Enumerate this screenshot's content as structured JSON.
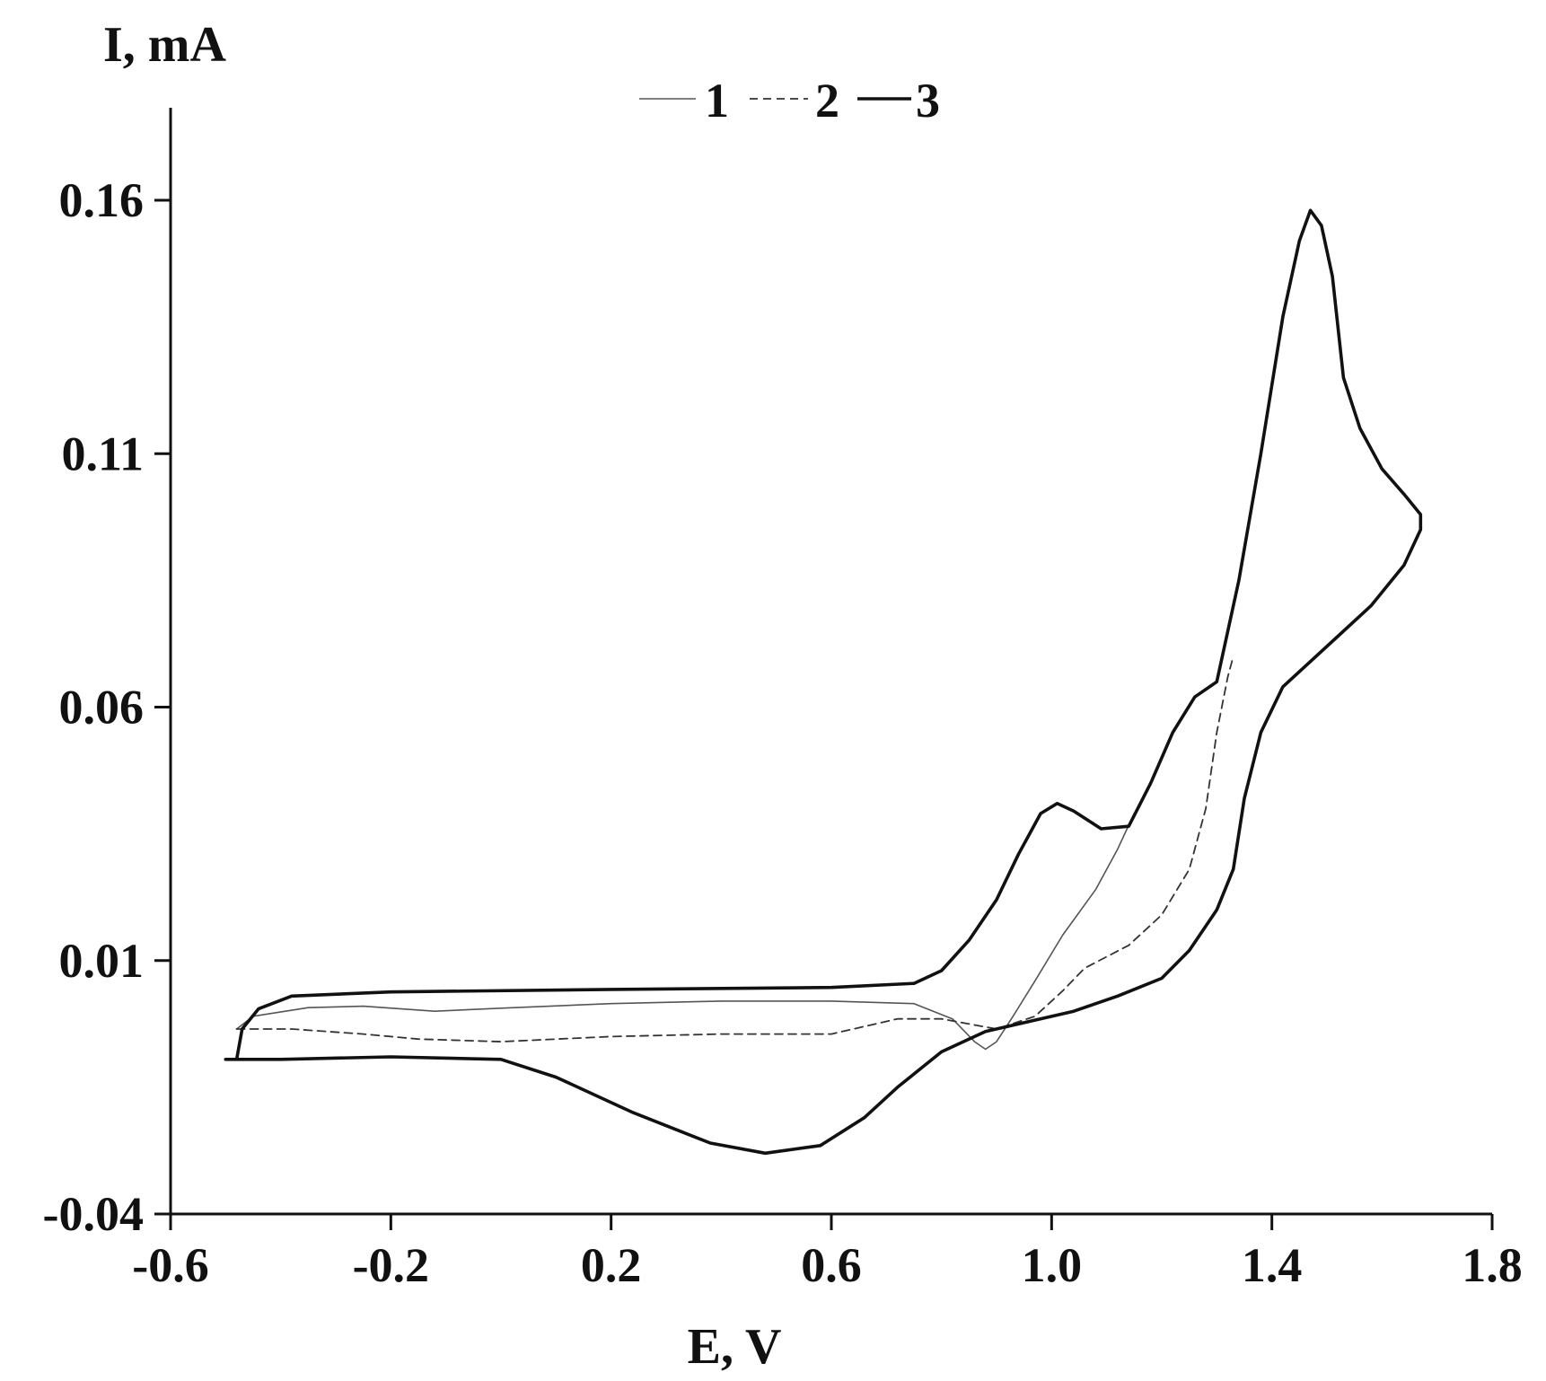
{
  "chart_data": {
    "type": "line",
    "title": "",
    "xlabel": "E, V",
    "ylabel": "I, mA",
    "xlim": [
      -0.6,
      1.8
    ],
    "ylim": [
      -0.04,
      0.18
    ],
    "x_ticks": [
      -0.6,
      -0.2,
      0.2,
      0.6,
      1.0,
      1.4,
      1.8
    ],
    "x_tick_labels": [
      "-0.6",
      "-0.2",
      "0.2",
      "0.6",
      "1.0",
      "1.4",
      "1.8"
    ],
    "y_ticks": [
      -0.04,
      0.01,
      0.06,
      0.11,
      0.16
    ],
    "y_tick_labels": [
      "-0.04",
      "0.01",
      "0.06",
      "0.11",
      "0.16"
    ],
    "grid": false,
    "legend_position": "top-center",
    "series": [
      {
        "name": "1",
        "style": "thin-solid",
        "color": "#555555",
        "points": [
          [
            -0.48,
            -0.0035
          ],
          [
            -0.45,
            -0.001
          ],
          [
            -0.35,
            0.0007
          ],
          [
            -0.25,
            0.001
          ],
          [
            -0.12,
            0.0
          ],
          [
            0.0,
            0.0006
          ],
          [
            0.2,
            0.0015
          ],
          [
            0.4,
            0.002
          ],
          [
            0.6,
            0.002
          ],
          [
            0.75,
            0.0015
          ],
          [
            0.82,
            -0.0015
          ],
          [
            0.86,
            -0.006
          ],
          [
            0.88,
            -0.0075
          ],
          [
            0.9,
            -0.006
          ],
          [
            0.93,
            -0.001
          ],
          [
            0.97,
            0.006
          ],
          [
            1.02,
            0.015
          ],
          [
            1.08,
            0.024
          ],
          [
            1.12,
            0.032
          ],
          [
            1.15,
            0.039
          ]
        ]
      },
      {
        "name": "2",
        "style": "dashed",
        "color": "#333333",
        "points": [
          [
            -0.48,
            -0.0035
          ],
          [
            -0.38,
            -0.0035
          ],
          [
            -0.25,
            -0.0045
          ],
          [
            -0.15,
            -0.0055
          ],
          [
            0.0,
            -0.006
          ],
          [
            0.2,
            -0.005
          ],
          [
            0.4,
            -0.0045
          ],
          [
            0.6,
            -0.0045
          ],
          [
            0.72,
            -0.0015
          ],
          [
            0.8,
            -0.0015
          ],
          [
            0.9,
            -0.0035
          ],
          [
            0.97,
            -0.001
          ],
          [
            1.02,
            0.004
          ],
          [
            1.06,
            0.0085
          ],
          [
            1.14,
            0.013
          ],
          [
            1.2,
            0.019
          ],
          [
            1.25,
            0.028
          ],
          [
            1.28,
            0.04
          ],
          [
            1.3,
            0.055
          ],
          [
            1.32,
            0.066
          ],
          [
            1.33,
            0.07
          ]
        ]
      },
      {
        "name": "3",
        "style": "thick-solid",
        "color": "#111111",
        "points": [
          [
            -0.48,
            -0.0095
          ],
          [
            -0.47,
            -0.0035
          ],
          [
            -0.44,
            0.0005
          ],
          [
            -0.38,
            0.003
          ],
          [
            -0.2,
            0.0038
          ],
          [
            0.2,
            0.0043
          ],
          [
            0.6,
            0.0047
          ],
          [
            0.75,
            0.0055
          ],
          [
            0.8,
            0.008
          ],
          [
            0.85,
            0.014
          ],
          [
            0.9,
            0.022
          ],
          [
            0.94,
            0.031
          ],
          [
            0.98,
            0.039
          ],
          [
            1.01,
            0.041
          ],
          [
            1.04,
            0.0395
          ],
          [
            1.09,
            0.036
          ],
          [
            1.14,
            0.0365
          ],
          [
            1.18,
            0.045
          ],
          [
            1.22,
            0.055
          ],
          [
            1.26,
            0.062
          ],
          [
            1.3,
            0.065
          ],
          [
            1.34,
            0.085
          ],
          [
            1.38,
            0.11
          ],
          [
            1.42,
            0.137
          ],
          [
            1.45,
            0.152
          ],
          [
            1.47,
            0.158
          ],
          [
            1.49,
            0.155
          ],
          [
            1.51,
            0.145
          ],
          [
            1.53,
            0.125
          ],
          [
            1.56,
            0.115
          ],
          [
            1.6,
            0.107
          ],
          [
            1.64,
            0.102
          ],
          [
            1.67,
            0.098
          ],
          [
            1.67,
            0.095
          ],
          [
            1.64,
            0.088
          ],
          [
            1.58,
            0.08
          ],
          [
            1.52,
            0.074
          ],
          [
            1.46,
            0.068
          ],
          [
            1.42,
            0.064
          ],
          [
            1.38,
            0.055
          ],
          [
            1.35,
            0.042
          ],
          [
            1.33,
            0.028
          ],
          [
            1.3,
            0.02
          ],
          [
            1.25,
            0.012
          ],
          [
            1.2,
            0.0065
          ],
          [
            1.12,
            0.003
          ],
          [
            1.04,
            0.0
          ],
          [
            0.96,
            -0.002
          ],
          [
            0.88,
            -0.004
          ],
          [
            0.8,
            -0.008
          ],
          [
            0.72,
            -0.015
          ],
          [
            0.66,
            -0.021
          ],
          [
            0.58,
            -0.0265
          ],
          [
            0.48,
            -0.028
          ],
          [
            0.38,
            -0.026
          ],
          [
            0.24,
            -0.02
          ],
          [
            0.1,
            -0.013
          ],
          [
            0.0,
            -0.0095
          ],
          [
            -0.2,
            -0.009
          ],
          [
            -0.4,
            -0.0095
          ],
          [
            -0.5,
            -0.0095
          ]
        ]
      }
    ]
  }
}
